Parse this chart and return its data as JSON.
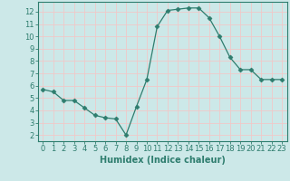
{
  "x": [
    0,
    1,
    2,
    3,
    4,
    5,
    6,
    7,
    8,
    9,
    10,
    11,
    12,
    13,
    14,
    15,
    16,
    17,
    18,
    19,
    20,
    21,
    22,
    23
  ],
  "y": [
    5.7,
    5.5,
    4.8,
    4.8,
    4.2,
    3.6,
    3.4,
    3.3,
    2.0,
    4.3,
    6.5,
    10.8,
    12.1,
    12.2,
    12.3,
    12.3,
    11.5,
    10.0,
    8.3,
    7.3,
    7.3,
    6.5,
    6.5,
    6.5
  ],
  "line_color": "#2e7d6e",
  "marker": "D",
  "marker_size": 2.5,
  "bg_color": "#cce8e8",
  "grid_color": "#f0c8c8",
  "xlabel": "Humidex (Indice chaleur)",
  "xlim": [
    -0.5,
    23.5
  ],
  "ylim": [
    1.5,
    12.8
  ],
  "yticks": [
    2,
    3,
    4,
    5,
    6,
    7,
    8,
    9,
    10,
    11,
    12
  ],
  "xticks": [
    0,
    1,
    2,
    3,
    4,
    5,
    6,
    7,
    8,
    9,
    10,
    11,
    12,
    13,
    14,
    15,
    16,
    17,
    18,
    19,
    20,
    21,
    22,
    23
  ],
  "label_fontsize": 7.0,
  "tick_fontsize": 6.0,
  "spine_color": "#2e7d6e",
  "tick_color": "#2e7d6e",
  "label_color": "#2e7d6e"
}
